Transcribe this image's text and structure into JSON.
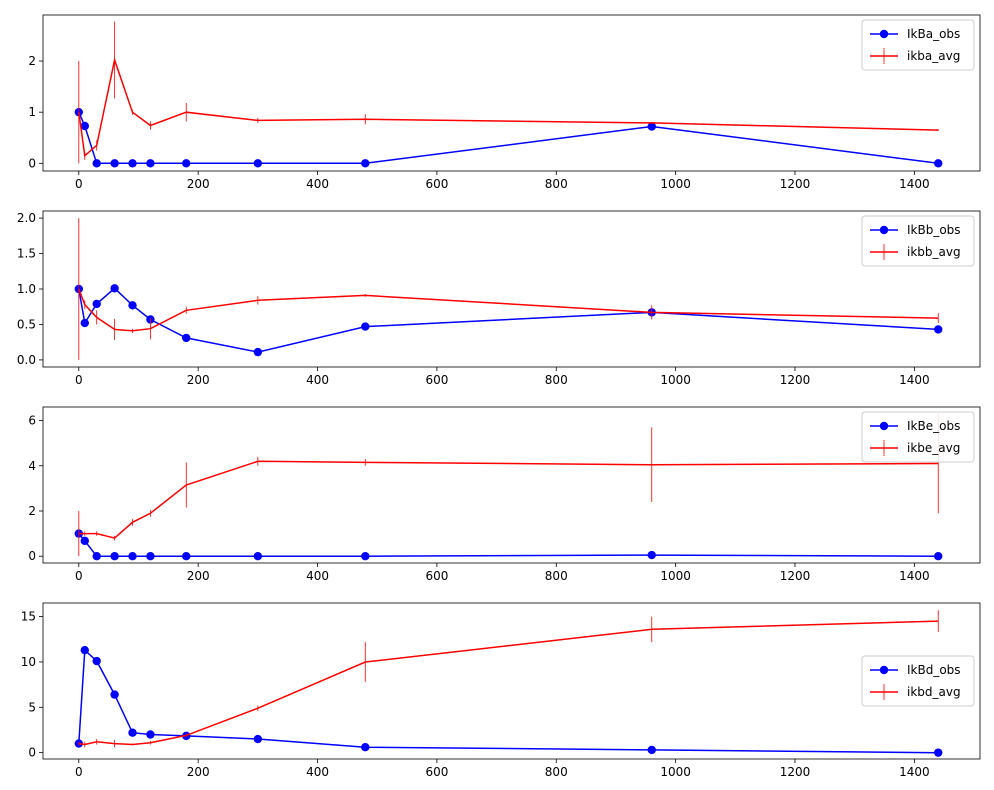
{
  "chart_data": [
    {
      "type": "line",
      "title": "",
      "xlabel": "",
      "ylabel": "",
      "xlim": [
        -60,
        1510
      ],
      "ylim": [
        -0.15,
        2.9
      ],
      "xticks": [
        0,
        200,
        400,
        600,
        800,
        1000,
        1200,
        1400
      ],
      "xtick_labels": [
        "0",
        "200",
        "400",
        "600",
        "800",
        "1000",
        "1200",
        "1400"
      ],
      "yticks": [
        0,
        1,
        2
      ],
      "ytick_labels": [
        "0",
        "1",
        "2"
      ],
      "legend_position": "upper right",
      "series": [
        {
          "name": "IkBa_obs",
          "color": "#0000ff",
          "marker": "circle",
          "x": [
            0,
            10,
            30,
            60,
            90,
            120,
            180,
            300,
            480,
            960,
            1440
          ],
          "y": [
            1.0,
            0.73,
            0.0,
            0.0,
            0.0,
            0.0,
            0.0,
            0.0,
            0.0,
            0.72,
            0.0
          ]
        },
        {
          "name": "ikba_avg",
          "color": "#ff0000",
          "marker": "errorbar",
          "x": [
            0,
            10,
            30,
            60,
            90,
            120,
            180,
            300,
            480,
            960,
            1440
          ],
          "y": [
            1.0,
            0.15,
            0.35,
            2.02,
            1.0,
            0.74,
            1.0,
            0.84,
            0.86,
            0.79,
            0.65
          ],
          "err": [
            1.0,
            0.08,
            0.1,
            0.75,
            0.05,
            0.08,
            0.18,
            0.05,
            0.1,
            0.02,
            0.02
          ]
        }
      ]
    },
    {
      "type": "line",
      "title": "",
      "xlabel": "",
      "ylabel": "",
      "xlim": [
        -60,
        1510
      ],
      "ylim": [
        -0.1,
        2.1
      ],
      "xticks": [
        0,
        200,
        400,
        600,
        800,
        1000,
        1200,
        1400
      ],
      "xtick_labels": [
        "0",
        "200",
        "400",
        "600",
        "800",
        "1000",
        "1200",
        "1400"
      ],
      "yticks": [
        0,
        0.5,
        1.0,
        1.5,
        2.0
      ],
      "ytick_labels": [
        "0.0",
        "0.5",
        "1.0",
        "1.5",
        "2.0"
      ],
      "legend_position": "upper right",
      "series": [
        {
          "name": "IkBb_obs",
          "color": "#0000ff",
          "marker": "circle",
          "x": [
            0,
            10,
            30,
            60,
            90,
            120,
            180,
            300,
            480,
            960,
            1440
          ],
          "y": [
            1.0,
            0.52,
            0.79,
            1.01,
            0.77,
            0.57,
            0.31,
            0.11,
            0.47,
            0.67,
            0.43
          ]
        },
        {
          "name": "ikbb_avg",
          "color": "#ff0000",
          "marker": "errorbar",
          "x": [
            0,
            10,
            30,
            60,
            90,
            120,
            180,
            300,
            480,
            960,
            1440
          ],
          "y": [
            1.0,
            0.78,
            0.6,
            0.43,
            0.41,
            0.44,
            0.7,
            0.84,
            0.91,
            0.67,
            0.59
          ],
          "err": [
            1.0,
            0.06,
            0.1,
            0.15,
            0.03,
            0.15,
            0.05,
            0.06,
            0.02,
            0.1,
            0.07
          ]
        }
      ]
    },
    {
      "type": "line",
      "title": "",
      "xlabel": "",
      "ylabel": "",
      "xlim": [
        -60,
        1510
      ],
      "ylim": [
        -0.3,
        6.6
      ],
      "xticks": [
        0,
        200,
        400,
        600,
        800,
        1000,
        1200,
        1400
      ],
      "xtick_labels": [
        "0",
        "200",
        "400",
        "600",
        "800",
        "1000",
        "1200",
        "1400"
      ],
      "yticks": [
        0,
        2,
        4,
        6
      ],
      "ytick_labels": [
        "0",
        "2",
        "4",
        "6"
      ],
      "legend_position": "upper right",
      "series": [
        {
          "name": "IkBe_obs",
          "color": "#0000ff",
          "marker": "circle",
          "x": [
            0,
            10,
            30,
            60,
            90,
            120,
            180,
            300,
            480,
            960,
            1440
          ],
          "y": [
            1.0,
            0.68,
            0.0,
            0.0,
            0.0,
            0.0,
            0.0,
            0.0,
            0.0,
            0.05,
            0.0
          ]
        },
        {
          "name": "ikbe_avg",
          "color": "#ff0000",
          "marker": "errorbar",
          "x": [
            0,
            10,
            30,
            60,
            90,
            120,
            180,
            300,
            480,
            960,
            1440
          ],
          "y": [
            1.0,
            1.0,
            1.0,
            0.8,
            1.5,
            1.9,
            3.15,
            4.2,
            4.15,
            4.05,
            4.1
          ],
          "err": [
            1.0,
            0.1,
            0.1,
            0.1,
            0.15,
            0.15,
            1.0,
            0.2,
            0.15,
            1.65,
            2.2
          ]
        }
      ]
    },
    {
      "type": "line",
      "title": "",
      "xlabel": "",
      "ylabel": "",
      "xlim": [
        -60,
        1510
      ],
      "ylim": [
        -0.7,
        16.5
      ],
      "xticks": [
        0,
        200,
        400,
        600,
        800,
        1000,
        1200,
        1400
      ],
      "xtick_labels": [
        "0",
        "200",
        "400",
        "600",
        "800",
        "1000",
        "1200",
        "1400"
      ],
      "yticks": [
        0,
        5,
        10,
        15
      ],
      "ytick_labels": [
        "0",
        "5",
        "10",
        "15"
      ],
      "legend_position": "center right",
      "series": [
        {
          "name": "IkBd_obs",
          "color": "#0000ff",
          "marker": "circle",
          "x": [
            0,
            10,
            30,
            60,
            90,
            120,
            180,
            300,
            480,
            960,
            1440
          ],
          "y": [
            1.0,
            11.3,
            10.1,
            6.4,
            2.2,
            2.0,
            1.85,
            1.5,
            0.6,
            0.3,
            0.0
          ]
        },
        {
          "name": "ikbd_avg",
          "color": "#ff0000",
          "marker": "errorbar",
          "x": [
            0,
            10,
            30,
            60,
            90,
            120,
            180,
            300,
            480,
            960,
            1440
          ],
          "y": [
            1.0,
            0.9,
            1.2,
            1.0,
            0.9,
            1.1,
            1.9,
            4.9,
            10.0,
            13.6,
            14.5
          ],
          "err": [
            0.2,
            0.3,
            0.3,
            0.4,
            0.1,
            0.2,
            0.2,
            0.3,
            2.2,
            1.4,
            1.2
          ]
        }
      ]
    }
  ]
}
